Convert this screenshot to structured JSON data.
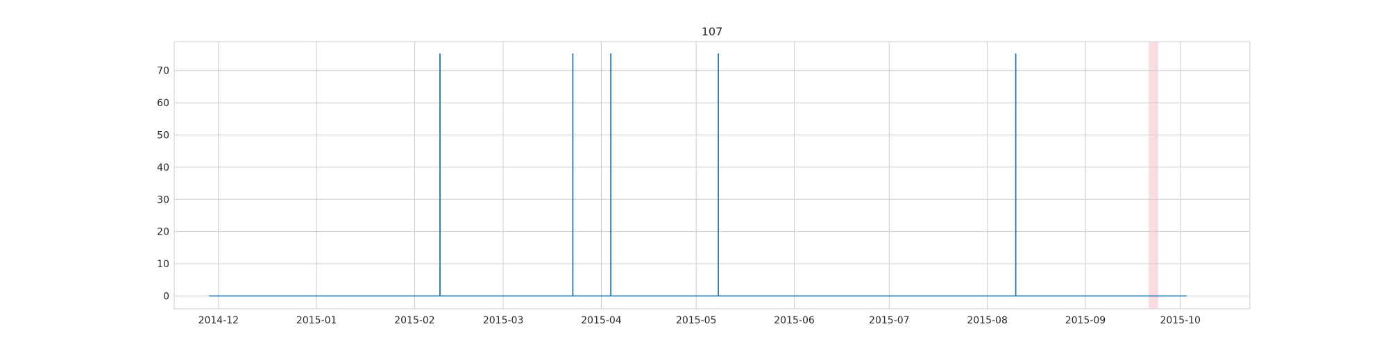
{
  "chart_data": {
    "type": "line",
    "title": "107",
    "xlabel": "",
    "ylabel": "",
    "x_axis": {
      "type": "date",
      "range": [
        "2014-11-17",
        "2015-10-23"
      ],
      "ticks": [
        "2014-12",
        "2015-01",
        "2015-02",
        "2015-03",
        "2015-04",
        "2015-05",
        "2015-06",
        "2015-07",
        "2015-08",
        "2015-09",
        "2015-10"
      ]
    },
    "y_axis": {
      "range": [
        -4,
        79
      ],
      "ticks": [
        0,
        10,
        20,
        30,
        40,
        50,
        60,
        70
      ]
    },
    "grid": true,
    "series": [
      {
        "color": "#1f77b4",
        "start": "2014-11-28",
        "end": "2015-10-03",
        "baseline": 0,
        "spikes": [
          {
            "date": "2015-02-09",
            "value": 75.3
          },
          {
            "date": "2015-03-23",
            "value": 75.3
          },
          {
            "date": "2015-04-04",
            "value": 75.3
          },
          {
            "date": "2015-05-08",
            "value": 75.3
          },
          {
            "date": "2015-08-10",
            "value": 75.3
          }
        ]
      }
    ],
    "highlight_span": {
      "start": "2015-09-21",
      "end": "2015-09-24",
      "color": "#f9d5d8"
    }
  }
}
